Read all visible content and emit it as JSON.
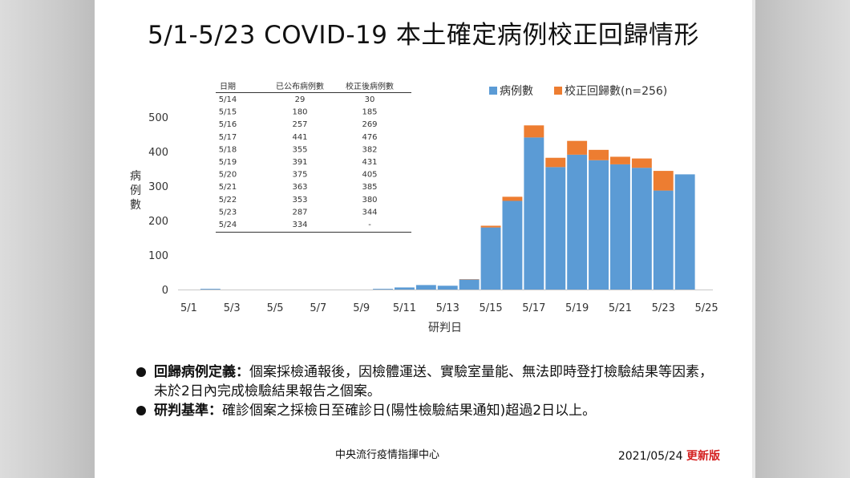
{
  "title": "5/1-5/23 COVID-19 本土確定病例校正回歸情形",
  "chart_data": {
    "type": "bar",
    "stacked": true,
    "x": [
      "5/1",
      "5/2",
      "5/3",
      "5/4",
      "5/5",
      "5/6",
      "5/7",
      "5/8",
      "5/9",
      "5/10",
      "5/11",
      "5/12",
      "5/13",
      "5/14",
      "5/15",
      "5/16",
      "5/17",
      "5/18",
      "5/19",
      "5/20",
      "5/21",
      "5/22",
      "5/23",
      "5/24"
    ],
    "series": [
      {
        "name": "病例數",
        "color": "#5b9bd5",
        "values": [
          0,
          2,
          0,
          0,
          0,
          0,
          0,
          0,
          0,
          2,
          6,
          13,
          11,
          29,
          180,
          257,
          441,
          355,
          391,
          375,
          363,
          353,
          287,
          334
        ]
      },
      {
        "name": "校正回歸數(n=256)",
        "color": "#ed7d31",
        "values": [
          0,
          0,
          0,
          0,
          0,
          0,
          0,
          0,
          0,
          0,
          0,
          0,
          0,
          1,
          5,
          12,
          35,
          27,
          40,
          30,
          22,
          27,
          57,
          0
        ]
      }
    ],
    "xticks": [
      "5/1",
      "5/3",
      "5/5",
      "5/7",
      "5/9",
      "5/11",
      "5/13",
      "5/15",
      "5/17",
      "5/19",
      "5/21",
      "5/23",
      "5/25"
    ],
    "yticks": [
      0,
      100,
      200,
      300,
      400,
      500
    ],
    "ylim": [
      0,
      540
    ],
    "xlabel": "研判日",
    "ylabel": "病例數",
    "legend_position": "top-right"
  },
  "table": {
    "headers": [
      "日期",
      "已公布病例數",
      "校正後病例數"
    ],
    "rows": [
      [
        "5/14",
        "29",
        "30"
      ],
      [
        "5/15",
        "180",
        "185"
      ],
      [
        "5/16",
        "257",
        "269"
      ],
      [
        "5/17",
        "441",
        "476"
      ],
      [
        "5/18",
        "355",
        "382"
      ],
      [
        "5/19",
        "391",
        "431"
      ],
      [
        "5/20",
        "375",
        "405"
      ],
      [
        "5/21",
        "363",
        "385"
      ],
      [
        "5/22",
        "353",
        "380"
      ],
      [
        "5/23",
        "287",
        "344"
      ],
      [
        "5/24",
        "334",
        "-"
      ]
    ]
  },
  "notes": [
    {
      "label": "回歸病例定義：",
      "text": "個案採檢通報後，因檢體運送、實驗室量能、無法即時登打檢驗結果等因素，未於2日內完成檢驗結果報告之個案。"
    },
    {
      "label": "研判基準：",
      "text": "確診個案之採檢日至確診日(陽性檢驗結果通知)超過2日以上。"
    }
  ],
  "footer": {
    "org": "中央流行疫情指揮中心",
    "date": "2021/05/24",
    "version": "更新版"
  }
}
